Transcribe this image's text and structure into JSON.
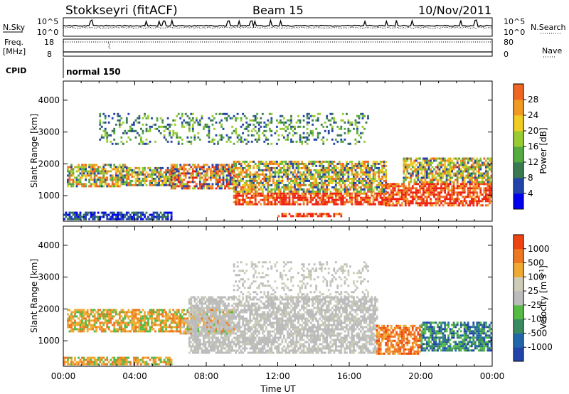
{
  "header": {
    "station": "Stokkseyri (fitACF)",
    "beam": "Beam 15",
    "date": "10/Nov/2011"
  },
  "top_panels": {
    "nsky_label": "N.Sky",
    "nsky_ticks": [
      "10^5",
      "10^0"
    ],
    "nsearch_label": "N.Search",
    "nsearch_ticks": [
      "10^5",
      "10^0"
    ],
    "freq_label": "Freq.",
    "freq_unit": "[MHz]",
    "freq_ticks": [
      "18",
      "8"
    ],
    "nave_label": "Nave",
    "nave_ticks": [
      "80",
      "0"
    ],
    "cpid_label": "CPID",
    "cpid_value": "normal 150"
  },
  "x_axis": {
    "label": "Time UT",
    "ticks": [
      "00:00",
      "04:00",
      "08:00",
      "12:00",
      "16:00",
      "20:00",
      "00:00"
    ]
  },
  "colors": {
    "power": [
      "#0000ee",
      "#2244aa",
      "#3a7a50",
      "#55aa40",
      "#99cc33",
      "#eecc22",
      "#f09a22",
      "#ee6622",
      "#ee2211"
    ],
    "velocity": [
      "#2244aa",
      "#2266aa",
      "#3a8a60",
      "#55bb44",
      "#bcbcbc",
      "#ccccb8",
      "#f0aa33",
      "#ee7722",
      "#ee4411",
      "#dd1111"
    ]
  },
  "chart_data": [
    {
      "type": "heatmap",
      "title": "",
      "ylabel": "Slant Range [km]",
      "xlabel": "",
      "y_ticks": [
        "1000",
        "2000",
        "3000",
        "4000"
      ],
      "colorbar_label": "Power [dB]",
      "colorbar_ticks": [
        "4",
        "8",
        "12",
        "16",
        "20",
        "24",
        "28"
      ],
      "ylim": [
        200,
        4600
      ],
      "xlim_hours": [
        0,
        24
      ],
      "regions": [
        {
          "t": [
            0.2,
            3.5
          ],
          "r": [
            1300,
            2000
          ],
          "level": "mid"
        },
        {
          "t": [
            3.5,
            6.2
          ],
          "r": [
            1300,
            1900
          ],
          "level": "mid"
        },
        {
          "t": [
            6.0,
            9.5
          ],
          "r": [
            1250,
            2000
          ],
          "level": "high"
        },
        {
          "t": [
            9.5,
            18.0
          ],
          "r": [
            700,
            1100
          ],
          "level": "strong"
        },
        {
          "t": [
            9.5,
            18.0
          ],
          "r": [
            1100,
            2100
          ],
          "level": "mid"
        },
        {
          "t": [
            12.0,
            15.5
          ],
          "r": [
            380,
            460
          ],
          "level": "strong"
        },
        {
          "t": [
            18.0,
            24.0
          ],
          "r": [
            700,
            1400
          ],
          "level": "strong"
        },
        {
          "t": [
            19.0,
            24.0
          ],
          "r": [
            1400,
            2200
          ],
          "level": "mid"
        },
        {
          "t": [
            0.0,
            6.0
          ],
          "r": [
            250,
            500
          ],
          "level": "low"
        },
        {
          "t": [
            2.0,
            17.0
          ],
          "r": [
            2600,
            3600
          ],
          "level": "sparse"
        }
      ]
    },
    {
      "type": "heatmap",
      "title": "",
      "ylabel": "Slant Range [km]",
      "xlabel": "Time UT",
      "y_ticks": [
        "1000",
        "2000",
        "3000",
        "4000"
      ],
      "colorbar_label": "Velocity [m s^-1]",
      "colorbar_ticks": [
        "1000",
        "500",
        "100",
        "25",
        "-25",
        "-100",
        "-500",
        "-1000"
      ],
      "ylim": [
        200,
        4600
      ],
      "xlim_hours": [
        0,
        24
      ],
      "regions": [
        {
          "t": [
            0.2,
            6.5
          ],
          "r": [
            1300,
            2000
          ],
          "level": "neg-small"
        },
        {
          "t": [
            6.5,
            9.5
          ],
          "r": [
            1200,
            2000
          ],
          "level": "mixed"
        },
        {
          "t": [
            7.0,
            17.5
          ],
          "r": [
            600,
            2400
          ],
          "level": "ground"
        },
        {
          "t": [
            9.5,
            17.0
          ],
          "r": [
            2400,
            3500
          ],
          "level": "ground-sparse"
        },
        {
          "t": [
            17.5,
            20.0
          ],
          "r": [
            600,
            1500
          ],
          "level": "neg-large"
        },
        {
          "t": [
            20.0,
            24.0
          ],
          "r": [
            700,
            1600
          ],
          "level": "pos-mid"
        },
        {
          "t": [
            0.0,
            6.0
          ],
          "r": [
            250,
            500
          ],
          "level": "neg-small"
        }
      ]
    }
  ]
}
